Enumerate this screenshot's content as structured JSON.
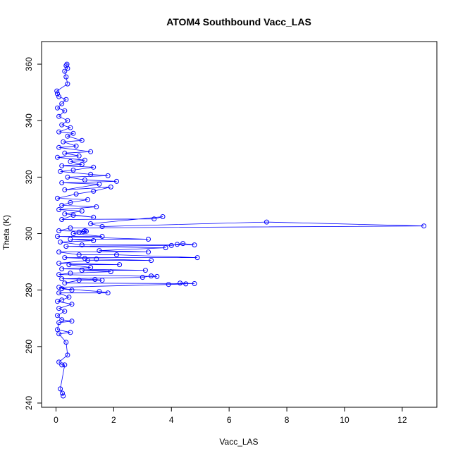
{
  "chart_data": {
    "type": "scatter",
    "title": "ATOM4 Southbound Vacc_LAS",
    "xlabel": "Vacc_LAS",
    "ylabel": "Theta (K)",
    "xlim": [
      -0.5,
      13.2
    ],
    "ylim": [
      238.5,
      368
    ],
    "x_ticks": [
      0,
      2,
      4,
      6,
      8,
      10,
      12
    ],
    "y_ticks": [
      240,
      260,
      280,
      300,
      320,
      340,
      360
    ],
    "grid": false,
    "connected": true,
    "marker": "open-circle",
    "color": "#0000ff",
    "series": [
      {
        "points": [
          [
            0.25,
            242.5
          ],
          [
            0.22,
            243.5
          ],
          [
            0.15,
            245
          ],
          [
            0.3,
            253.5
          ],
          [
            0.2,
            253.5
          ],
          [
            0.1,
            254.5
          ],
          [
            0.4,
            257
          ],
          [
            0.35,
            261.5
          ],
          [
            0.1,
            264.5
          ],
          [
            0.5,
            265
          ],
          [
            0.05,
            266
          ],
          [
            0.1,
            268.5
          ],
          [
            0.55,
            269
          ],
          [
            0.2,
            269.5
          ],
          [
            0.05,
            271
          ],
          [
            0.3,
            272.5
          ],
          [
            0.1,
            273.5
          ],
          [
            0.55,
            275
          ],
          [
            0.05,
            276
          ],
          [
            0.2,
            276.5
          ],
          [
            0.45,
            277.5
          ],
          [
            0.1,
            279
          ],
          [
            1.8,
            279
          ],
          [
            1.5,
            279.5
          ],
          [
            0.2,
            280.5
          ],
          [
            0.55,
            280
          ],
          [
            0.1,
            281
          ],
          [
            3.9,
            282
          ],
          [
            4.5,
            282.2
          ],
          [
            4.3,
            282.5
          ],
          [
            4.8,
            282.3
          ],
          [
            0.3,
            282.5
          ],
          [
            0.8,
            283.5
          ],
          [
            1.6,
            283.5
          ],
          [
            1.35,
            283.8
          ],
          [
            0.2,
            284
          ],
          [
            3.0,
            284.5
          ],
          [
            3.3,
            285
          ],
          [
            3.5,
            284.8
          ],
          [
            0.1,
            285.5
          ],
          [
            0.5,
            286
          ],
          [
            1.9,
            286.5
          ],
          [
            0.9,
            287
          ],
          [
            3.1,
            287
          ],
          [
            0.2,
            287.5
          ],
          [
            1.2,
            288
          ],
          [
            0.45,
            289
          ],
          [
            2.2,
            289
          ],
          [
            0.1,
            289.5
          ],
          [
            1.1,
            290.5
          ],
          [
            3.3,
            290.5
          ],
          [
            1.4,
            291
          ],
          [
            1.0,
            291.2
          ],
          [
            0.3,
            291.5
          ],
          [
            4.9,
            291.5
          ],
          [
            2.1,
            292.5
          ],
          [
            0.8,
            292.5
          ],
          [
            0.1,
            293.5
          ],
          [
            3.2,
            293.5
          ],
          [
            1.5,
            294
          ],
          [
            3.8,
            295
          ],
          [
            0.35,
            295.5
          ],
          [
            4.0,
            295.8
          ],
          [
            4.2,
            296.2
          ],
          [
            4.4,
            296.5
          ],
          [
            4.8,
            296
          ],
          [
            0.9,
            296
          ],
          [
            0.15,
            297
          ],
          [
            1.3,
            297.5
          ],
          [
            0.5,
            298
          ],
          [
            3.2,
            298
          ],
          [
            0.05,
            299
          ],
          [
            1.6,
            299
          ],
          [
            0.6,
            300
          ],
          [
            0.8,
            300.5
          ],
          [
            0.95,
            300.7
          ],
          [
            1.0,
            301
          ],
          [
            1.05,
            300.8
          ],
          [
            0.1,
            301
          ],
          [
            0.5,
            302
          ],
          [
            12.75,
            302.7
          ],
          [
            7.3,
            304.1
          ],
          [
            1.6,
            302.5
          ],
          [
            1.2,
            303.5
          ],
          [
            3.7,
            306
          ],
          [
            3.4,
            305.2
          ],
          [
            0.2,
            305
          ],
          [
            0.6,
            306.5
          ],
          [
            1.3,
            305.8
          ],
          [
            0.3,
            307
          ],
          [
            0.9,
            308
          ],
          [
            0.1,
            308.5
          ],
          [
            1.4,
            309.5
          ],
          [
            0.2,
            310
          ],
          [
            0.5,
            311
          ],
          [
            1.1,
            312
          ],
          [
            0.05,
            312.5
          ],
          [
            0.7,
            314
          ],
          [
            1.3,
            315
          ],
          [
            1.9,
            316.5
          ],
          [
            0.3,
            315.5
          ],
          [
            1.5,
            317.5
          ],
          [
            0.2,
            318
          ],
          [
            2.1,
            318.5
          ],
          [
            1.0,
            319
          ],
          [
            0.4,
            320
          ],
          [
            1.8,
            320.5
          ],
          [
            1.2,
            321
          ],
          [
            0.15,
            322
          ],
          [
            0.6,
            322.5
          ],
          [
            1.3,
            323.5
          ],
          [
            0.2,
            324
          ],
          [
            0.9,
            324.5
          ],
          [
            0.5,
            325.5
          ],
          [
            1.0,
            326
          ],
          [
            0.05,
            327
          ],
          [
            0.8,
            327.5
          ],
          [
            0.3,
            328.5
          ],
          [
            1.2,
            329
          ],
          [
            0.1,
            330.5
          ],
          [
            0.7,
            331
          ],
          [
            0.25,
            332.5
          ],
          [
            0.9,
            333
          ],
          [
            0.4,
            334.5
          ],
          [
            0.6,
            335.5
          ],
          [
            0.1,
            336
          ],
          [
            0.5,
            337.5
          ],
          [
            0.2,
            338.5
          ],
          [
            0.4,
            340
          ],
          [
            0.1,
            341.5
          ],
          [
            0.3,
            343.5
          ],
          [
            0.05,
            344.5
          ],
          [
            0.2,
            346
          ],
          [
            0.35,
            347.5
          ],
          [
            0.1,
            348.5
          ],
          [
            0.05,
            349.5
          ],
          [
            0.03,
            350.5
          ],
          [
            0.4,
            353
          ],
          [
            0.35,
            355.5
          ],
          [
            0.3,
            357.5
          ],
          [
            0.4,
            358.5
          ],
          [
            0.35,
            359.5
          ],
          [
            0.38,
            360
          ]
        ]
      }
    ]
  }
}
